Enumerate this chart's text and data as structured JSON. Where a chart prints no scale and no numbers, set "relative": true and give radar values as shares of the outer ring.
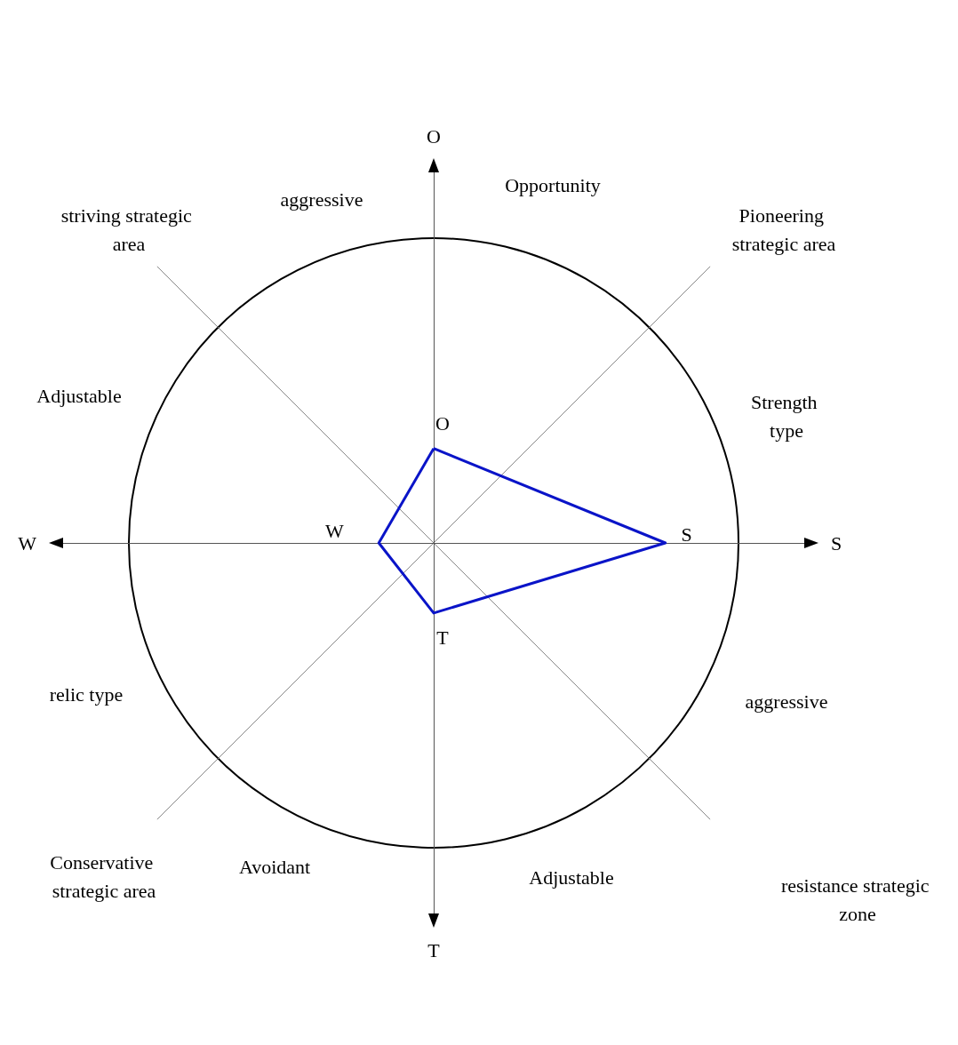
{
  "chart_data": {
    "type": "radar",
    "relative": true,
    "categories": [
      "O",
      "S",
      "T",
      "W"
    ],
    "series": [
      {
        "color": "#0a14c8",
        "values": [
          0.31,
          0.76,
          0.23,
          0.18
        ]
      }
    ],
    "marker": "none",
    "grid": false,
    "annotations": [
      "Opportunity",
      "aggressive",
      "striving strategic area",
      "Pioneering strategic area",
      "Adjustable",
      "Strength type",
      "relic type",
      "aggressive",
      "Conservative strategic area",
      "Avoidant",
      "Adjustable",
      "resistance strategic zone",
      {
        "text": "O",
        "x": "O"
      },
      {
        "text": "S",
        "x": "S"
      },
      {
        "text": "T",
        "x": "T"
      },
      {
        "text": "W",
        "x": "W"
      }
    ]
  }
}
